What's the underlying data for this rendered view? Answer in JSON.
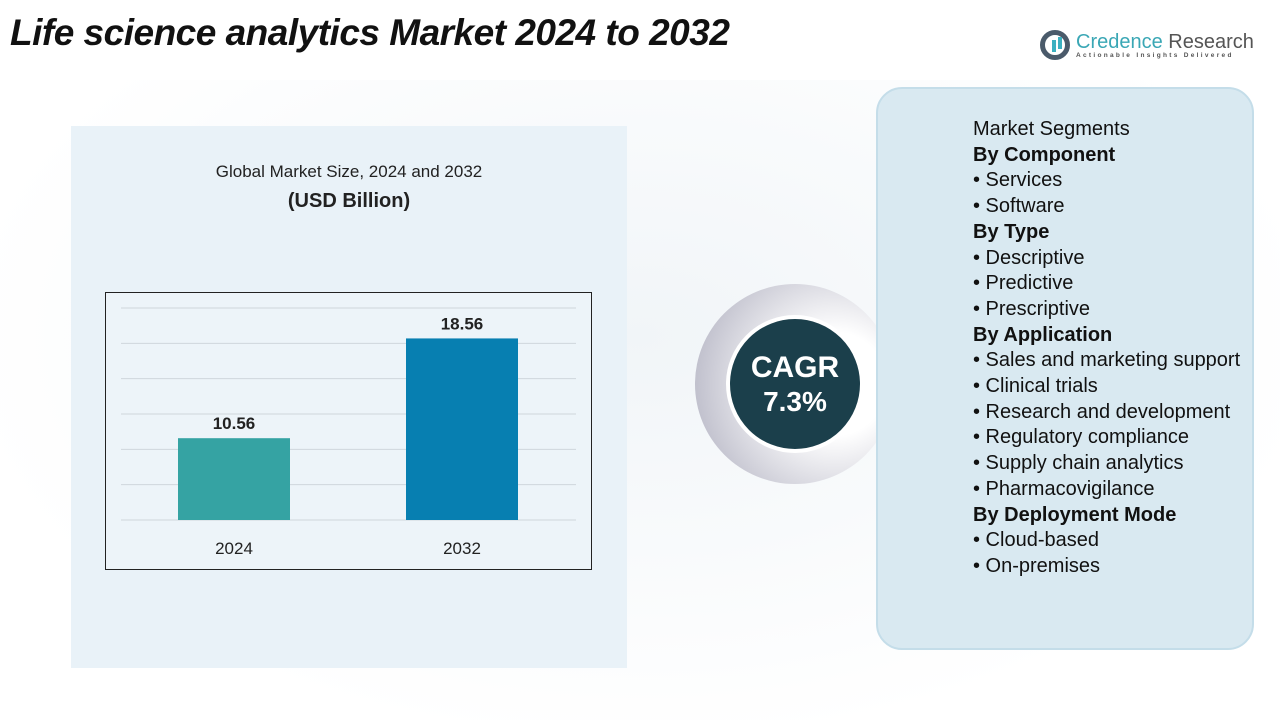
{
  "title": "Life science analytics Market 2024 to 2032",
  "logo": {
    "name_a": "Credence",
    "name_b": " Research",
    "tagline": "Actionable Insights Delivered"
  },
  "chart_header": {
    "line1": "Global Market Size, 2024 and 2032",
    "line2": "(USD Billion)"
  },
  "chart_data": {
    "type": "bar",
    "title": "Global Market Size, 2024 and 2032",
    "ylabel": "(USD Billion)",
    "categories": [
      "2024",
      "2032"
    ],
    "values": [
      10.56,
      18.56
    ],
    "labels": [
      "10.56",
      "18.56"
    ],
    "colors": [
      "#35a3a3",
      "#077fb1"
    ],
    "ylim": [
      4,
      21
    ],
    "grid": true
  },
  "cagr": {
    "label": "CAGR",
    "value": "7.3%"
  },
  "segments": {
    "heading": "Market Segments",
    "items": [
      {
        "t": "h",
        "text": "By Component"
      },
      {
        "t": "i",
        "text": "•  Services"
      },
      {
        "t": "i",
        "text": "•  Software"
      },
      {
        "t": "h",
        "text": "By Type"
      },
      {
        "t": "i",
        "text": "•  Descriptive"
      },
      {
        "t": "i",
        "text": "•  Predictive"
      },
      {
        "t": "i",
        "text": "•  Prescriptive"
      },
      {
        "t": "h",
        "text": "By Application"
      },
      {
        "t": "i",
        "text": "•  Sales and marketing support"
      },
      {
        "t": "i",
        "text": "•  Clinical trials"
      },
      {
        "t": "i",
        "text": "•  Research and development"
      },
      {
        "t": "i",
        "text": "•  Regulatory compliance"
      },
      {
        "t": "i",
        "text": "•  Supply chain analytics"
      },
      {
        "t": "i",
        "text": "•  Pharmacovigilance"
      },
      {
        "t": "h",
        "text": "By Deployment Mode"
      },
      {
        "t": "i",
        "text": "•  Cloud-based"
      },
      {
        "t": "i",
        "text": "•  On-premises"
      }
    ]
  }
}
